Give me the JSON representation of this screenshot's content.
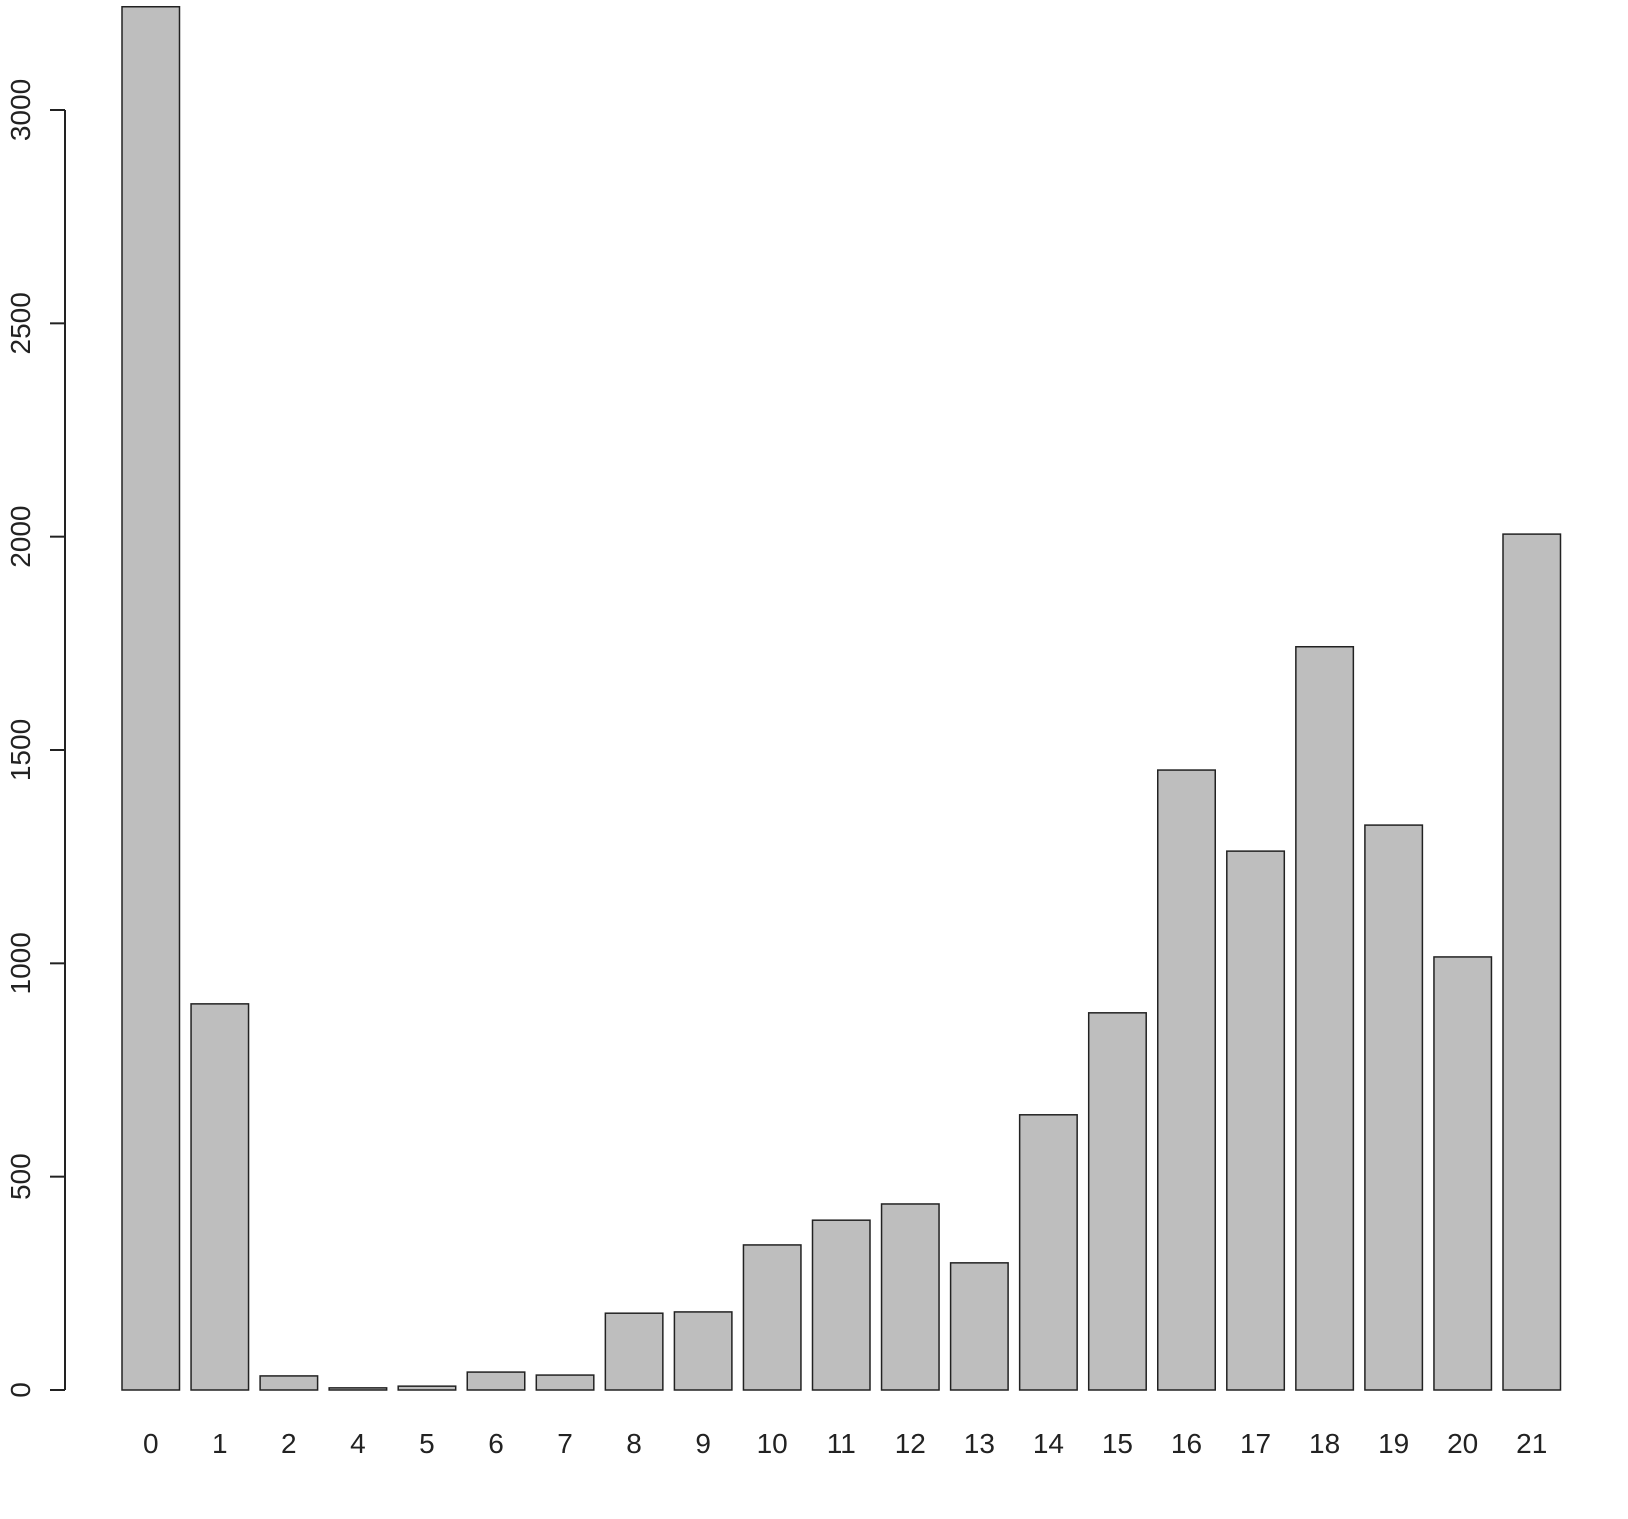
{
  "chart_data": {
    "type": "bar",
    "title": "",
    "xlabel": "",
    "ylabel": "",
    "categories": [
      "0",
      "1",
      "2",
      "4",
      "5",
      "6",
      "7",
      "8",
      "9",
      "10",
      "11",
      "12",
      "13",
      "14",
      "15",
      "16",
      "17",
      "18",
      "19",
      "20",
      "21"
    ],
    "values": [
      3242,
      905,
      33,
      5,
      9,
      42,
      35,
      180,
      183,
      340,
      398,
      436,
      298,
      645,
      884,
      1453,
      1263,
      1742,
      1324,
      1015,
      2006
    ],
    "yticks": [
      0,
      500,
      1000,
      1500,
      2000,
      2500,
      3000
    ],
    "ylim": [
      0,
      3242
    ],
    "grid": false,
    "bar_color": "#bebebe",
    "edge_color": "#222222"
  }
}
